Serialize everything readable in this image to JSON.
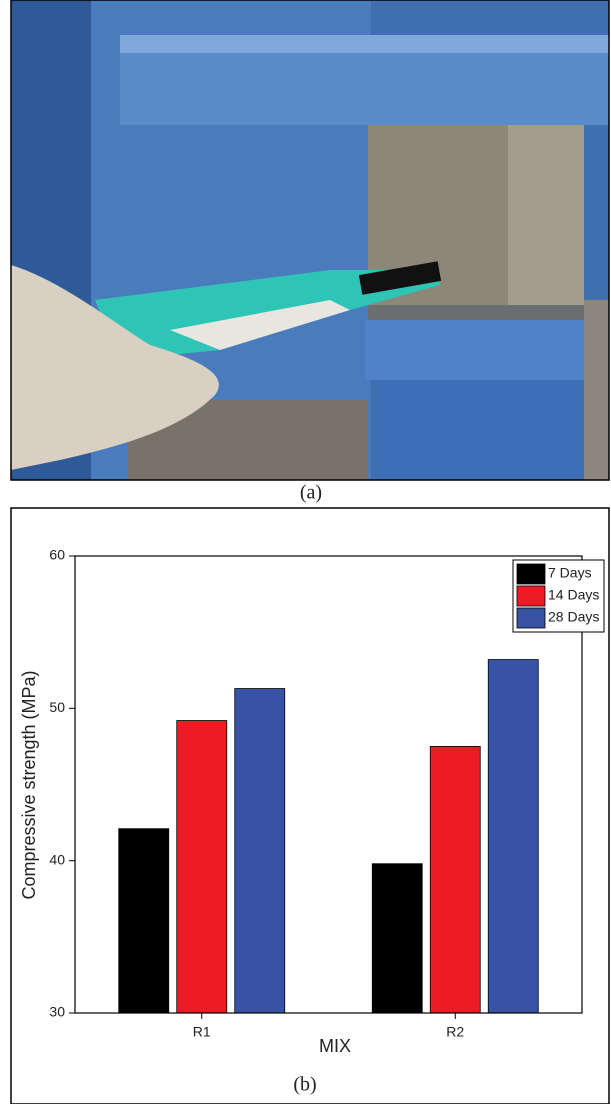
{
  "captions": [
    "(a)",
    "(b)"
  ],
  "chart_data": {
    "type": "bar",
    "categories": [
      "R1",
      "R2"
    ],
    "series": [
      {
        "name": "7 Days",
        "color": "#000000",
        "values": [
          42.1,
          39.8
        ]
      },
      {
        "name": "14 Days",
        "color": "#ed1c24",
        "values": [
          49.2,
          47.5
        ]
      },
      {
        "name": "28 Days",
        "color": "#3953a4",
        "values": [
          51.3,
          53.2
        ]
      }
    ],
    "ylim": [
      30,
      60
    ],
    "yticks": [
      30,
      40,
      50,
      60
    ],
    "y_label": "Compressive strength (MPa)",
    "x_label": "MIX",
    "legend": "upper right",
    "grid": false
  }
}
